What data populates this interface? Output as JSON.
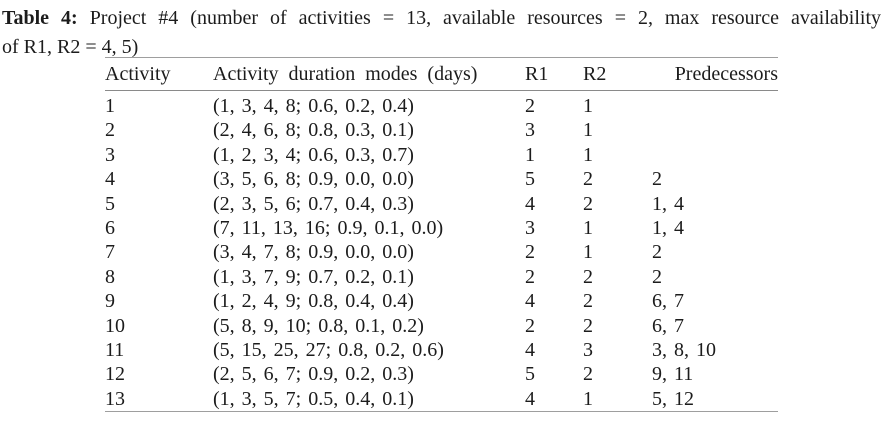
{
  "caption": {
    "label": "Table 4:",
    "line1_rest": "Project #4 (number of activities = 13, available resources = 2, max resource availability",
    "line2": "of R1, R2 = 4, 5)"
  },
  "table": {
    "headers": {
      "activity": "Activity",
      "duration_modes": "Activity duration modes (days)",
      "r1": "R1",
      "r2": "R2",
      "predecessors": "Predecessors"
    },
    "rows": [
      {
        "activity": "1",
        "duration_modes": "(1, 3, 4, 8; 0.6, 0.2, 0.4)",
        "r1": "2",
        "r2": "1",
        "predecessors": ""
      },
      {
        "activity": "2",
        "duration_modes": "(2, 4, 6, 8; 0.8, 0.3, 0.1)",
        "r1": "3",
        "r2": "1",
        "predecessors": ""
      },
      {
        "activity": "3",
        "duration_modes": "(1, 2, 3, 4; 0.6, 0.3, 0.7)",
        "r1": "1",
        "r2": "1",
        "predecessors": ""
      },
      {
        "activity": "4",
        "duration_modes": "(3, 5, 6, 8; 0.9, 0.0, 0.0)",
        "r1": "5",
        "r2": "2",
        "predecessors": "2"
      },
      {
        "activity": "5",
        "duration_modes": "(2, 3, 5, 6; 0.7, 0.4, 0.3)",
        "r1": "4",
        "r2": "2",
        "predecessors": "1, 4"
      },
      {
        "activity": "6",
        "duration_modes": "(7, 11, 13, 16; 0.9, 0.1, 0.0)",
        "r1": "3",
        "r2": "1",
        "predecessors": "1, 4"
      },
      {
        "activity": "7",
        "duration_modes": "(3, 4, 7, 8; 0.9, 0.0, 0.0)",
        "r1": "2",
        "r2": "1",
        "predecessors": "2"
      },
      {
        "activity": "8",
        "duration_modes": "(1, 3, 7, 9; 0.7, 0.2, 0.1)",
        "r1": "2",
        "r2": "2",
        "predecessors": "2"
      },
      {
        "activity": "9",
        "duration_modes": "(1, 2, 4, 9; 0.8, 0.4, 0.4)",
        "r1": "4",
        "r2": "2",
        "predecessors": "6, 7"
      },
      {
        "activity": "10",
        "duration_modes": "(5, 8, 9, 10; 0.8, 0.1, 0.2)",
        "r1": "2",
        "r2": "2",
        "predecessors": "6, 7"
      },
      {
        "activity": "11",
        "duration_modes": "(5, 15, 25, 27; 0.8, 0.2, 0.6)",
        "r1": "4",
        "r2": "3",
        "predecessors": "3, 8, 10"
      },
      {
        "activity": "12",
        "duration_modes": "(2, 5, 6, 7; 0.9, 0.2, 0.3)",
        "r1": "5",
        "r2": "2",
        "predecessors": "9, 11"
      },
      {
        "activity": "13",
        "duration_modes": "(1, 3, 5, 7; 0.5, 0.4, 0.1)",
        "r1": "4",
        "r2": "1",
        "predecessors": "5, 12"
      }
    ]
  },
  "colors": {
    "text": "#1c1c1c",
    "rule_outer": "#9e9e9e",
    "rule_inner": "#8a8a8a",
    "background": "#ffffff"
  }
}
